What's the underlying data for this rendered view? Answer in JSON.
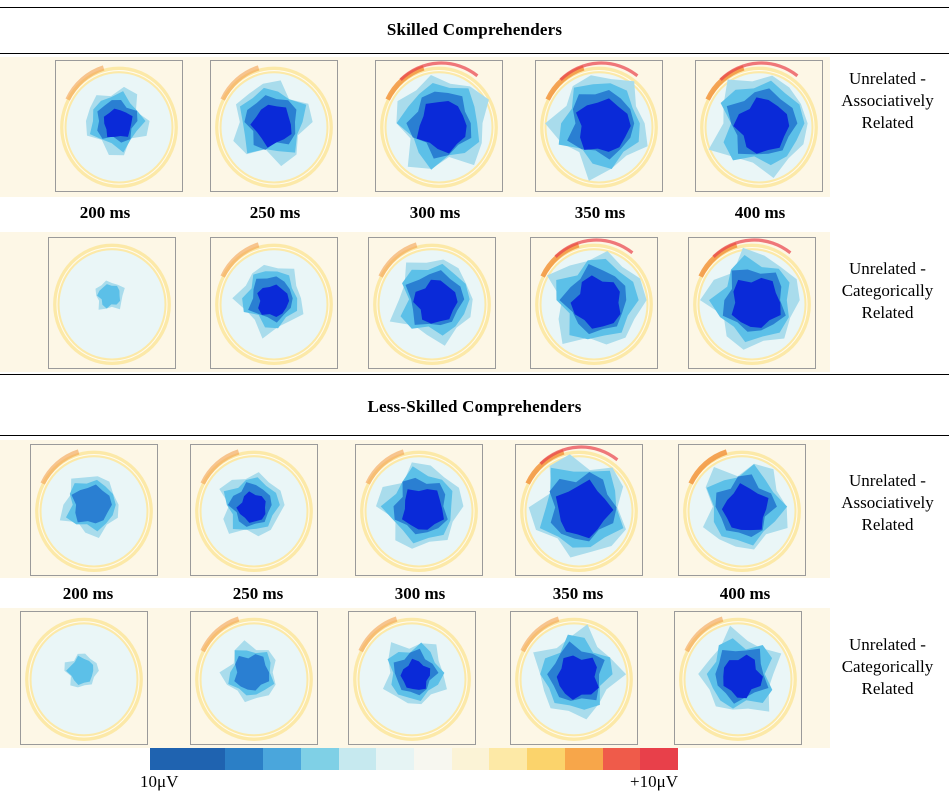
{
  "groups": [
    {
      "title": "Skilled Comprehenders",
      "time_labels": [
        "200 ms",
        "250 ms",
        "300 ms",
        "350 ms",
        "400 ms"
      ],
      "conditions": [
        {
          "label_line1": "Unrelated -",
          "label_line2": "Associatively",
          "label_line3": "Related"
        },
        {
          "label_line1": "Unrelated -",
          "label_line2": "Categorically",
          "label_line3": "Related"
        }
      ]
    },
    {
      "title": "Less-Skilled Comprehenders",
      "time_labels": [
        "200 ms",
        "250 ms",
        "300 ms",
        "350 ms",
        "400 ms"
      ],
      "conditions": [
        {
          "label_line1": "Unrelated -",
          "label_line2": "Associatively",
          "label_line3": "Related"
        },
        {
          "label_line1": "Unrelated -",
          "label_line2": "Categorically",
          "label_line3": "Related"
        }
      ]
    }
  ],
  "color_scale": {
    "min_label": "10μV",
    "max_label": "+10μV",
    "colors": [
      "#1f63b0",
      "#1f63b0",
      "#2b7fc6",
      "#4aa6dc",
      "#7fd0e6",
      "#c6e9ef",
      "#e6f4f4",
      "#f7f7f0",
      "#fbf3d6",
      "#fde9a6",
      "#fbd36b",
      "#f7a64a",
      "#ef5b4a",
      "#e8404a"
    ]
  },
  "palette": {
    "background": "#fdf7e6",
    "ring_outer": "#fce9a8",
    "ring_warm": "#f39a45",
    "ring_hot": "#e8404a",
    "light": "#eaf6f7",
    "cyan": "#5cc0e8",
    "mid_blue": "#2a7fd2",
    "deep_blue": "#0a2ad8"
  },
  "maps": {
    "skilled_assoc": [
      0.55,
      0.75,
      0.95,
      1.0,
      1.0
    ],
    "skilled_categ": [
      0.1,
      0.6,
      0.8,
      0.95,
      0.95
    ],
    "less_assoc": [
      0.5,
      0.55,
      0.8,
      1.0,
      0.85
    ],
    "less_categ": [
      0.15,
      0.45,
      0.55,
      0.8,
      0.75
    ]
  }
}
